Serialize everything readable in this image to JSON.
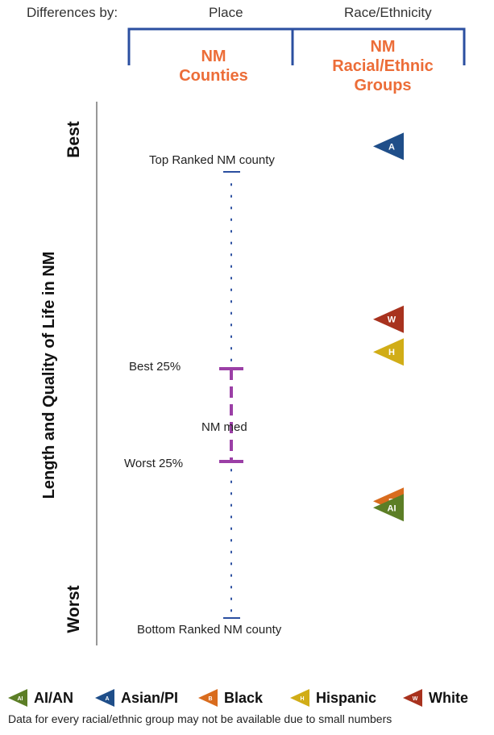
{
  "header": {
    "differences_by": "Differences by:",
    "place": "Place",
    "race_ethnicity": "Race/Ethnicity"
  },
  "groups": {
    "counties": [
      "NM",
      "Counties"
    ],
    "racial": [
      "NM",
      "Racial/Ethnic",
      "Groups"
    ]
  },
  "axis": {
    "title": "Length and Quality of Life in NM",
    "best": "Best",
    "worst": "Worst"
  },
  "markers": {
    "top": "Top Ranked NM county",
    "best25": "Best 25%",
    "median": "NM med",
    "worst25": "Worst 25%",
    "bottom": "Bottom Ranked NM county"
  },
  "badges": [
    {
      "code": "A",
      "group": "Asian/PI",
      "color": "#1f4e89",
      "rank": 0.04
    },
    {
      "code": "W",
      "group": "White",
      "color": "#a8321e",
      "rank": 0.442
    },
    {
      "code": "H",
      "group": "Hispanic",
      "color": "#d1ad17",
      "rank": 0.518
    },
    {
      "code": "B",
      "group": "Black",
      "color": "#d96c1e",
      "rank": 0.865
    },
    {
      "code": "AI",
      "group": "AI/AN",
      "color": "#5c7e26",
      "rank": 0.88
    }
  ],
  "legend": [
    {
      "code": "AI",
      "label": "AI/AN",
      "color": "#5c7e26"
    },
    {
      "code": "A",
      "label": "Asian/PI",
      "color": "#1f4e89"
    },
    {
      "code": "B",
      "label": "Black",
      "color": "#d96c1e"
    },
    {
      "code": "H",
      "label": "Hispanic",
      "color": "#d1ad17"
    },
    {
      "code": "W",
      "label": "White",
      "color": "#a8321e"
    }
  ],
  "note": "Data for every racial/ethnic group may not be available due to small numbers",
  "colors": {
    "bracket": "#2b4fa0",
    "orange": "#ec6d38",
    "iqr": "#9b3fa6",
    "dots": "#2b4fa0"
  }
}
